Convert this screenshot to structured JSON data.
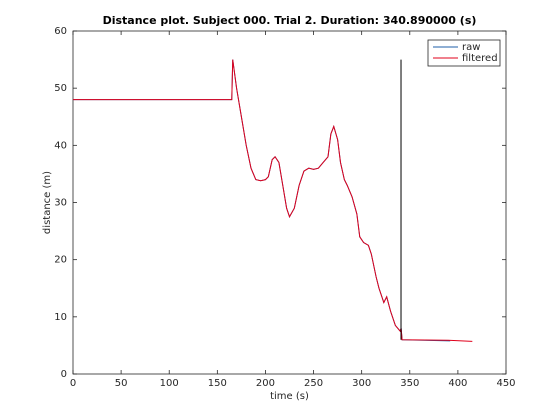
{
  "chart_data": {
    "type": "line",
    "title": "Distance plot. Subject 000. Trial 2. Duration: 340.890000 (s)",
    "xlabel": "time (s)",
    "ylabel": "distance (m)",
    "xlim": [
      0,
      450
    ],
    "xticks": [
      0,
      50,
      100,
      150,
      200,
      250,
      300,
      350,
      400,
      450
    ],
    "ylim": [
      0,
      60
    ],
    "yticks": [
      0,
      10,
      20,
      30,
      40,
      50,
      60
    ],
    "legend": "top-right",
    "series": [
      {
        "name": "raw",
        "color": "#1f5fa8",
        "x": [
          0,
          165,
          166,
          170,
          175,
          180,
          185,
          190,
          195,
          200,
          203,
          207,
          210,
          214,
          218,
          222,
          225,
          230,
          235,
          240,
          245,
          250,
          255,
          260,
          265,
          268,
          271,
          275,
          278,
          282,
          285,
          290,
          295,
          298,
          302,
          307,
          310,
          315,
          318,
          320,
          323,
          326,
          330,
          335,
          340,
          341,
          342,
          392
        ],
        "values": [
          48,
          48,
          55,
          50,
          45,
          40,
          36,
          34,
          33.8,
          34,
          34.5,
          37.5,
          38,
          37,
          33,
          29,
          27.5,
          29,
          33,
          35.5,
          36,
          35.8,
          36,
          37,
          38,
          42,
          43.3,
          41,
          37,
          34,
          33,
          31,
          28,
          24,
          23,
          22.5,
          21,
          17,
          15,
          14,
          12.5,
          13.5,
          11,
          8.5,
          7.5,
          8,
          6,
          5.8
        ]
      },
      {
        "name": "filtered",
        "color": "#e0001b",
        "x": [
          0,
          165,
          166,
          170,
          175,
          180,
          185,
          190,
          195,
          200,
          203,
          207,
          210,
          214,
          218,
          222,
          225,
          230,
          235,
          240,
          245,
          250,
          255,
          260,
          265,
          268,
          271,
          275,
          278,
          282,
          285,
          290,
          295,
          298,
          302,
          307,
          310,
          315,
          318,
          320,
          323,
          326,
          330,
          335,
          340,
          341,
          342,
          390,
          415
        ],
        "values": [
          48,
          48,
          55,
          50,
          45,
          40,
          36,
          34,
          33.8,
          34,
          34.5,
          37.5,
          38,
          37,
          33,
          29,
          27.5,
          29,
          33,
          35.5,
          36,
          35.8,
          36,
          37,
          38,
          42,
          43.3,
          41,
          37,
          34,
          33,
          31,
          28,
          24,
          23,
          22.5,
          21,
          17,
          15,
          14,
          12.5,
          13.5,
          11,
          8.5,
          7.5,
          8,
          6,
          5.9,
          5.7
        ]
      }
    ],
    "vline": {
      "color": "#000000",
      "x": [
        340.89,
        340.89
      ],
      "values": [
        6,
        55
      ]
    }
  }
}
